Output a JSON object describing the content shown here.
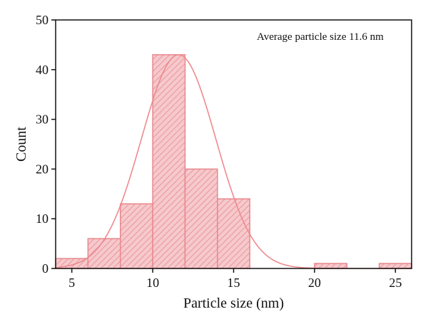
{
  "chart_data": {
    "type": "bar",
    "subtype": "histogram",
    "xlabel": "Particle size (nm)",
    "ylabel": "Count",
    "xlim": [
      4,
      26
    ],
    "ylim": [
      0,
      50
    ],
    "x_ticks": [
      5,
      10,
      15,
      20,
      25
    ],
    "y_ticks": [
      0,
      10,
      20,
      30,
      40,
      50
    ],
    "bins": [
      {
        "start": 4,
        "end": 6,
        "count": 2
      },
      {
        "start": 6,
        "end": 8,
        "count": 6
      },
      {
        "start": 8,
        "end": 10,
        "count": 13
      },
      {
        "start": 10,
        "end": 12,
        "count": 43
      },
      {
        "start": 12,
        "end": 14,
        "count": 20
      },
      {
        "start": 14,
        "end": 16,
        "count": 14
      },
      {
        "start": 16,
        "end": 18,
        "count": 0
      },
      {
        "start": 18,
        "end": 20,
        "count": 0
      },
      {
        "start": 20,
        "end": 22,
        "count": 1
      },
      {
        "start": 22,
        "end": 24,
        "count": 0
      },
      {
        "start": 24,
        "end": 26,
        "count": 1
      }
    ],
    "fit_curve": {
      "type": "gaussian",
      "center": 11.6,
      "sigma": 2.3,
      "peak": 43
    },
    "annotation": "Average particle size 11.6 nm",
    "colors": {
      "bar_fill": "#f6c9cc",
      "bar_stroke": "#e8878d",
      "hatch": "#e9959b",
      "curve": "#ee8a8f",
      "axis": "#111111"
    },
    "grid": false,
    "legend": "none"
  }
}
